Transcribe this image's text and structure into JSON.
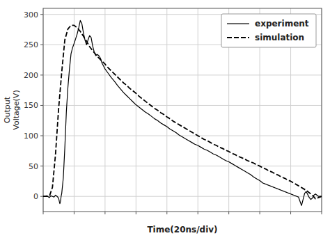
{
  "chart_data": {
    "type": "line",
    "xlabel": "Time(20ns/div)",
    "ylabel": "Output\nVoltage(V)",
    "xlim": [
      0,
      9
    ],
    "ylim": [
      -25,
      310
    ],
    "xticks": [
      0,
      1,
      2,
      3,
      4,
      5,
      6,
      7,
      8,
      9
    ],
    "yticks": [
      0,
      50,
      100,
      150,
      200,
      250,
      300
    ],
    "tick_labels": "y",
    "grid": true,
    "legend": "upper right",
    "series": [
      {
        "name": "experiment",
        "color": "#000000",
        "line_style": "solid",
        "x": [
          0.0,
          0.05,
          0.1,
          0.15,
          0.2,
          0.25,
          0.3,
          0.35,
          0.4,
          0.45,
          0.5,
          0.52,
          0.54,
          0.56,
          0.58,
          0.6,
          0.65,
          0.7,
          0.75,
          0.8,
          0.85,
          0.9,
          0.95,
          1.0,
          1.05,
          1.1,
          1.15,
          1.2,
          1.25,
          1.3,
          1.35,
          1.4,
          1.45,
          1.5,
          1.55,
          1.6,
          1.65,
          1.7,
          1.75,
          1.8,
          1.85,
          1.9,
          1.95,
          2.0,
          2.1,
          2.2,
          2.3,
          2.4,
          2.5,
          2.6,
          2.7,
          2.8,
          2.9,
          3.0,
          3.1,
          3.2,
          3.3,
          3.4,
          3.5,
          3.6,
          3.7,
          3.8,
          3.9,
          4.0,
          4.1,
          4.2,
          4.3,
          4.4,
          4.5,
          4.6,
          4.7,
          4.8,
          4.9,
          5.0,
          5.1,
          5.2,
          5.3,
          5.4,
          5.5,
          5.6,
          5.7,
          5.8,
          5.9,
          6.0,
          6.1,
          6.2,
          6.3,
          6.4,
          6.5,
          6.6,
          6.7,
          6.8,
          6.9,
          7.0,
          7.05,
          7.1,
          7.15,
          7.2,
          7.25,
          7.3,
          7.35,
          7.4,
          7.45,
          7.5,
          7.55,
          7.6,
          7.65,
          7.7,
          7.75,
          7.8,
          7.85,
          7.9,
          7.95,
          8.0,
          8.05,
          8.1,
          8.15,
          8.2,
          8.25,
          8.3,
          8.35,
          8.4,
          8.45,
          8.5,
          8.55,
          8.6,
          8.65,
          8.7,
          8.75,
          8.8,
          8.85,
          8.9,
          8.95,
          9.0
        ],
        "values": [
          0,
          0,
          1,
          0,
          -2,
          1,
          0,
          -1,
          2,
          0,
          -3,
          -8,
          -12,
          -8,
          0,
          5,
          30,
          80,
          140,
          180,
          210,
          235,
          245,
          252,
          260,
          268,
          278,
          290,
          285,
          270,
          258,
          250,
          258,
          265,
          262,
          248,
          238,
          232,
          234,
          232,
          228,
          220,
          215,
          210,
          203,
          196,
          190,
          183,
          177,
          171,
          166,
          161,
          156,
          151,
          147,
          143,
          139,
          136,
          132,
          128,
          125,
          121,
          118,
          115,
          111,
          108,
          105,
          101,
          98,
          95,
          92,
          89,
          86,
          84,
          81,
          78,
          76,
          73,
          70,
          68,
          65,
          62,
          59,
          57,
          54,
          51,
          48,
          45,
          42,
          39,
          36,
          32,
          29,
          26,
          24,
          22,
          21,
          20,
          19,
          18,
          17,
          16,
          15,
          14,
          13,
          12,
          11,
          10,
          9,
          8,
          7,
          6,
          5,
          4,
          3,
          2,
          1,
          0,
          -1,
          -8,
          -15,
          -5,
          5,
          8,
          3,
          -2,
          -5,
          -3,
          2,
          4,
          2,
          0,
          0,
          0
        ]
      },
      {
        "name": "simulation",
        "color": "#000000",
        "line_style": "dashed",
        "x": [
          0.0,
          0.1,
          0.2,
          0.3,
          0.4,
          0.5,
          0.6,
          0.7,
          0.8,
          0.9,
          1.0,
          1.1,
          1.2,
          1.3,
          1.4,
          1.5,
          1.6,
          1.7,
          1.8,
          1.9,
          2.0,
          2.1,
          2.2,
          2.3,
          2.4,
          2.5,
          2.6,
          2.7,
          2.8,
          2.9,
          3.0,
          3.1,
          3.2,
          3.3,
          3.4,
          3.5,
          3.6,
          3.7,
          3.8,
          3.9,
          4.0,
          4.1,
          4.2,
          4.3,
          4.4,
          4.5,
          4.6,
          4.7,
          4.8,
          4.9,
          5.0,
          5.1,
          5.2,
          5.3,
          5.4,
          5.5,
          5.6,
          5.7,
          5.8,
          5.9,
          6.0,
          6.1,
          6.2,
          6.3,
          6.4,
          6.5,
          6.6,
          6.7,
          6.8,
          6.9,
          7.0,
          7.1,
          7.2,
          7.3,
          7.4,
          7.5,
          7.6,
          7.7,
          7.8,
          7.9,
          8.0,
          8.1,
          8.2,
          8.3,
          8.4,
          8.5,
          8.6,
          8.7,
          8.8,
          8.9,
          9.0
        ],
        "values": [
          0,
          0,
          0,
          15,
          70,
          145,
          205,
          258,
          276,
          282,
          282,
          278,
          272,
          264,
          256,
          247,
          240,
          234,
          228,
          223,
          218,
          212,
          207,
          202,
          197,
          192,
          187,
          183,
          178,
          174,
          170,
          165,
          161,
          157,
          153,
          149,
          145,
          142,
          138,
          135,
          131,
          128,
          124,
          121,
          118,
          115,
          112,
          109,
          106,
          103,
          100,
          97,
          94,
          92,
          89,
          86,
          84,
          81,
          79,
          76,
          74,
          71,
          69,
          66,
          64,
          62,
          59,
          57,
          55,
          52,
          50,
          47,
          45,
          42,
          40,
          37,
          35,
          32,
          30,
          27,
          25,
          22,
          19,
          16,
          13,
          10,
          6,
          2,
          -4,
          -2,
          0
        ]
      }
    ]
  }
}
